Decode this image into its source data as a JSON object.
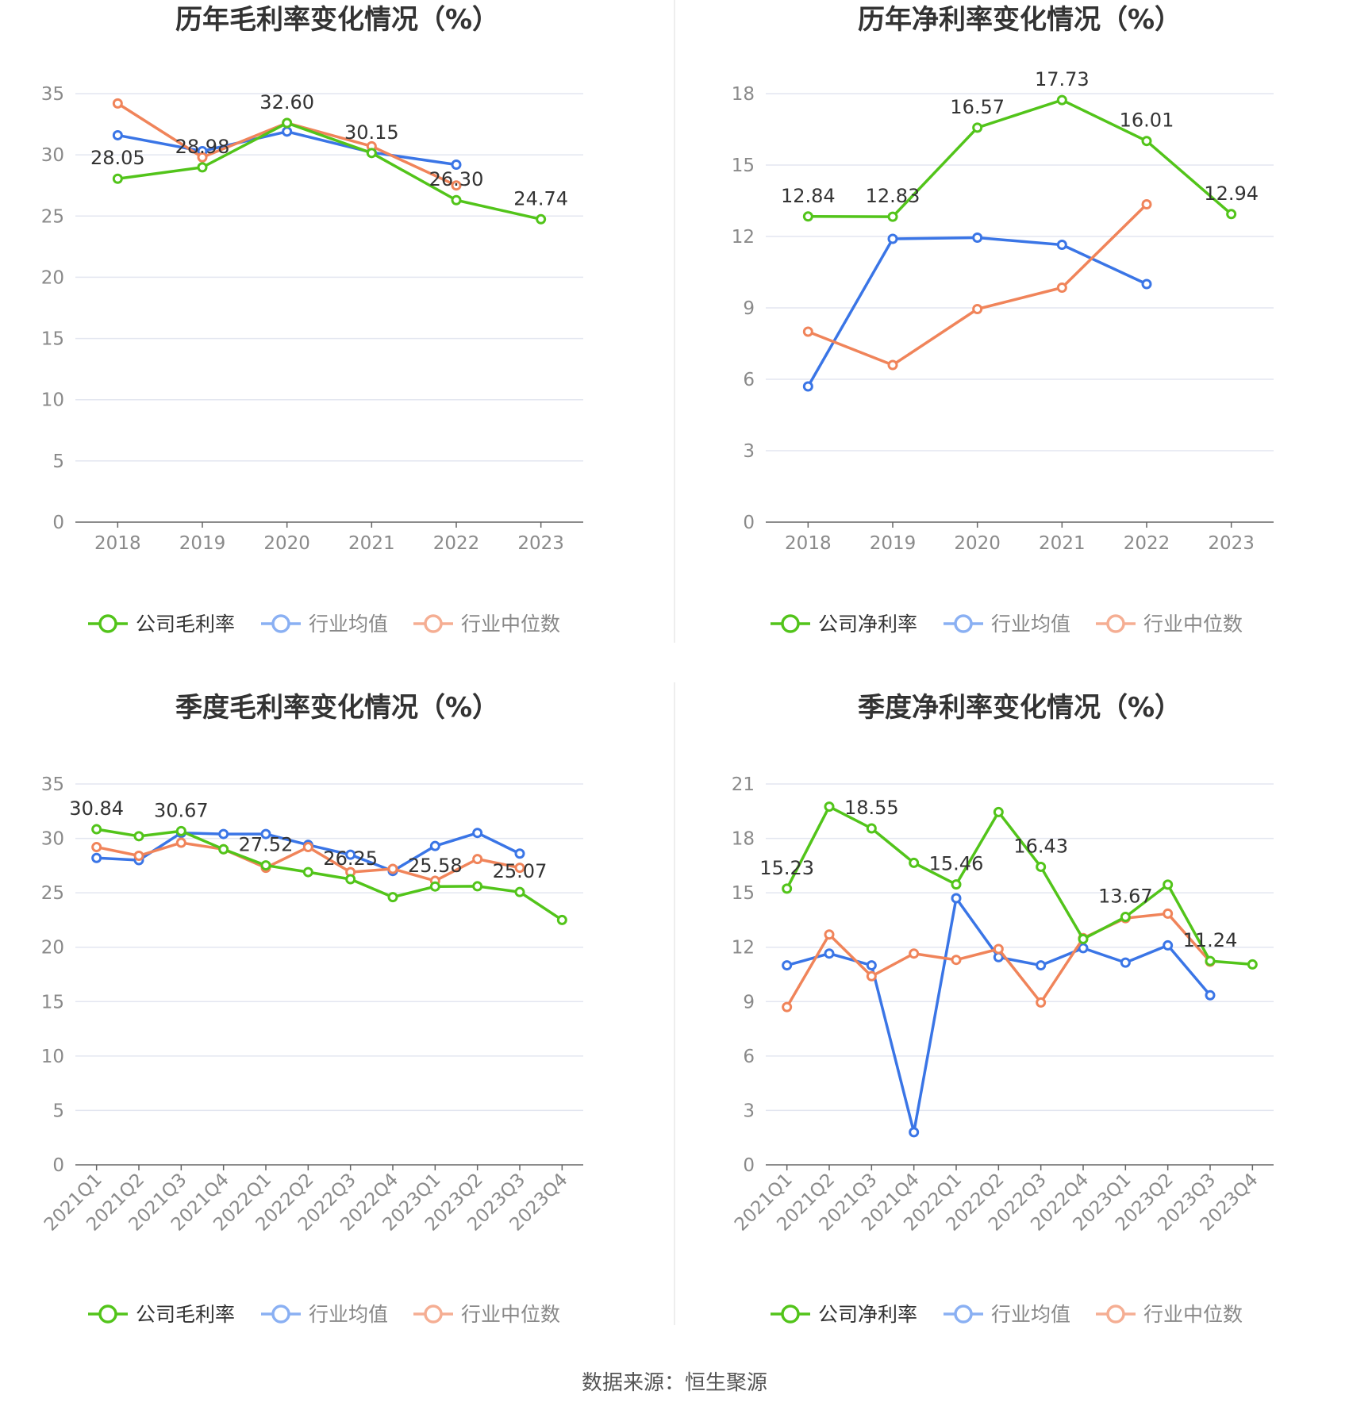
{
  "source_text": "数据来源：恒生聚源",
  "colors": {
    "company": "#52c41a",
    "avg": "#3a75e6",
    "median": "#f0845a",
    "grid": "#e3e6f0",
    "axis": "#666666",
    "title": "#333333",
    "label": "#333333",
    "tick": "#8a8a8a",
    "divider": "#eeeeee"
  },
  "chart_data": [
    {
      "type": "line",
      "title": "历年毛利率变化情况（%）",
      "categories": [
        "2018",
        "2019",
        "2020",
        "2021",
        "2022",
        "2023"
      ],
      "ylim": [
        0,
        35
      ],
      "yticks": [
        0,
        5,
        10,
        15,
        20,
        25,
        30,
        35
      ],
      "grid": true,
      "legend_position": "bottom",
      "series": [
        {
          "name": "公司毛利率",
          "values": [
            28.05,
            28.98,
            32.6,
            30.15,
            26.3,
            24.74
          ],
          "labels": [
            "28.05",
            "28.98",
            "32.60",
            "30.15",
            "26.30",
            "24.74"
          ]
        },
        {
          "name": "行业均值",
          "values": [
            31.6,
            30.3,
            31.9,
            30.2,
            29.2,
            null
          ]
        },
        {
          "name": "行业中位数",
          "values": [
            34.2,
            29.8,
            32.6,
            30.7,
            27.5,
            null
          ]
        }
      ]
    },
    {
      "type": "line",
      "title": "历年净利率变化情况（%）",
      "categories": [
        "2018",
        "2019",
        "2020",
        "2021",
        "2022",
        "2023"
      ],
      "ylim": [
        0,
        18
      ],
      "yticks": [
        0,
        3,
        6,
        9,
        12,
        15,
        18
      ],
      "grid": true,
      "legend_position": "bottom",
      "series": [
        {
          "name": "公司净利率",
          "values": [
            12.84,
            12.83,
            16.57,
            17.73,
            16.01,
            12.94
          ],
          "labels": [
            "12.84",
            "12.83",
            "16.57",
            "17.73",
            "16.01",
            "12.94"
          ]
        },
        {
          "name": "行业均值",
          "values": [
            5.7,
            11.9,
            11.95,
            11.65,
            10.0,
            null
          ]
        },
        {
          "name": "行业中位数",
          "values": [
            8.0,
            6.6,
            8.95,
            9.85,
            13.35,
            null
          ]
        }
      ]
    },
    {
      "type": "line",
      "title": "季度毛利率变化情况（%）",
      "categories": [
        "2021Q1",
        "2021Q2",
        "2021Q3",
        "2021Q4",
        "2022Q1",
        "2022Q2",
        "2022Q3",
        "2022Q4",
        "2023Q1",
        "2023Q2",
        "2023Q3",
        "2023Q4"
      ],
      "ylim": [
        0,
        35
      ],
      "yticks": [
        0,
        5,
        10,
        15,
        20,
        25,
        30,
        35
      ],
      "grid": true,
      "legend_position": "bottom",
      "series": [
        {
          "name": "公司毛利率",
          "values": [
            30.84,
            30.2,
            30.67,
            29.0,
            27.52,
            26.9,
            26.25,
            24.6,
            25.58,
            25.6,
            25.07,
            22.5
          ],
          "labels": [
            "30.84",
            "",
            "30.67",
            "",
            "27.52",
            "",
            "26.25",
            "",
            "25.58",
            "",
            "25.07",
            ""
          ]
        },
        {
          "name": "行业均值",
          "values": [
            28.2,
            28.0,
            30.5,
            30.4,
            30.4,
            29.4,
            28.5,
            27.0,
            29.3,
            30.5,
            28.6,
            null
          ]
        },
        {
          "name": "行业中位数",
          "values": [
            29.2,
            28.4,
            29.6,
            29.0,
            27.3,
            29.2,
            26.9,
            27.2,
            26.1,
            28.1,
            27.3,
            null
          ]
        }
      ]
    },
    {
      "type": "line",
      "title": "季度净利率变化情况（%）",
      "categories": [
        "2021Q1",
        "2021Q2",
        "2021Q3",
        "2021Q4",
        "2022Q1",
        "2022Q2",
        "2022Q3",
        "2022Q4",
        "2023Q1",
        "2023Q2",
        "2023Q3",
        "2023Q4"
      ],
      "ylim": [
        0,
        21
      ],
      "yticks": [
        0,
        3,
        6,
        9,
        12,
        15,
        18,
        21
      ],
      "grid": true,
      "legend_position": "bottom",
      "series": [
        {
          "name": "公司净利率",
          "values": [
            15.23,
            19.75,
            18.55,
            16.65,
            15.46,
            19.45,
            16.43,
            12.45,
            13.67,
            15.45,
            11.24,
            11.05
          ],
          "labels": [
            "15.23",
            "",
            "18.55",
            "",
            "15.46",
            "",
            "16.43",
            "",
            "13.67",
            "",
            "11.24",
            ""
          ]
        },
        {
          "name": "行业均值",
          "values": [
            11.0,
            11.65,
            11.0,
            1.8,
            14.7,
            11.45,
            11.0,
            11.95,
            11.15,
            12.1,
            9.35,
            null
          ]
        },
        {
          "name": "行业中位数",
          "values": [
            8.7,
            12.7,
            10.4,
            11.65,
            11.3,
            11.9,
            8.95,
            12.5,
            13.6,
            13.85,
            11.2,
            null
          ]
        }
      ]
    }
  ]
}
